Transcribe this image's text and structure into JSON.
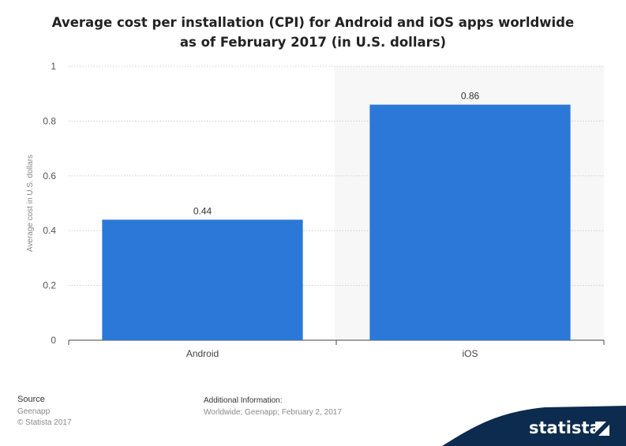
{
  "chart_data": {
    "type": "bar",
    "title": "Average cost per installation (CPI) for Android and iOS apps worldwide as of February 2017 (in U.S. dollars)",
    "title_lines": [
      "Average cost per installation (CPI) for Android and iOS apps worldwide",
      "as of February 2017 (in U.S. dollars)"
    ],
    "categories": [
      "Android",
      "iOS"
    ],
    "values": [
      0.44,
      0.86
    ],
    "value_labels": [
      "0.44",
      "0.86"
    ],
    "xlabel": "",
    "ylabel": "Average cost in U.S. dollars",
    "ylim": [
      0,
      1
    ],
    "yticks": [
      0,
      0.2,
      0.4,
      0.6,
      0.8,
      1
    ],
    "ytick_labels": [
      "0",
      "0.2",
      "0.4",
      "0.6",
      "0.8",
      "1"
    ],
    "grid": true,
    "highlighted_category": "iOS",
    "bar_color": "#2b78d8",
    "highlight_bg": "#f7f7f7"
  },
  "footer": {
    "source_label": "Source",
    "source_name": "Geenapp",
    "copyright": "© Statista 2017",
    "additional_label": "Additional Information:",
    "additional_text": "Worldwide; Geenapp; February 2, 2017"
  },
  "brand": {
    "name": "statista",
    "color": "#0d2b4e",
    "accent": "#2b78d8"
  }
}
